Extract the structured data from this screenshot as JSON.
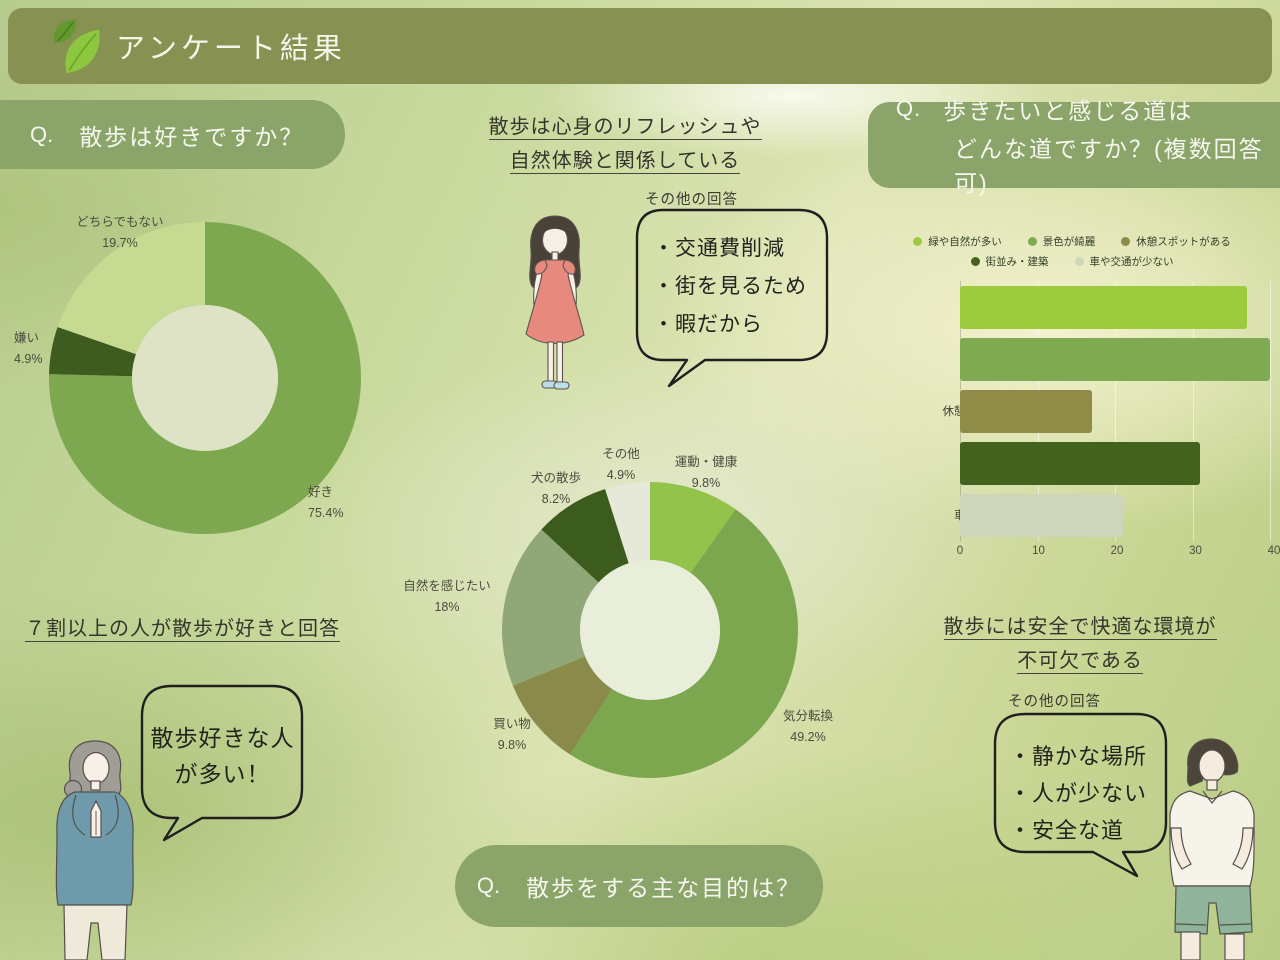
{
  "header": {
    "title": "アンケート結果"
  },
  "icons": {
    "header_logo": "leaf-icon"
  },
  "colors": {
    "header_bar": "#869152",
    "question_badge": "#8ba469",
    "bubble_outline": "#1f1f1f",
    "text_dark": "#3b3b33"
  },
  "questions": {
    "q1": {
      "prefix": "Q.",
      "text": "散歩は好きですか？"
    },
    "q2": {
      "prefix": "Q.",
      "line1": "歩きたいと感じる道は",
      "line2": "どんな道ですか？(複数回答可)"
    },
    "q3": {
      "prefix": "Q.",
      "text": "散歩をする主な目的は？"
    }
  },
  "statements": {
    "s1_line1": "散歩は心身のリフレッシュや",
    "s1_line2": "自然体験と関係している",
    "s2": "７割以上の人が散歩が好きと回答",
    "s3_line1": "散歩には安全で快適な環境が",
    "s3_line2": "不可欠である"
  },
  "bubbles": {
    "other1": {
      "title": "その他の回答",
      "items": [
        "・交通費削減",
        "・街を見るため",
        "・暇だから"
      ]
    },
    "happy": {
      "line1": "散歩好きな人",
      "line2": "が多い！"
    },
    "other2": {
      "title": "その他の回答",
      "items": [
        "・静かな場所",
        "・人が少ない",
        "・安全な道"
      ]
    }
  },
  "chart_data": [
    {
      "type": "pie",
      "donut": true,
      "title": "散歩は好きですか？",
      "labels": [
        "好き",
        "嫌い",
        "どちらでもない"
      ],
      "values": [
        75.4,
        4.9,
        19.7
      ],
      "pct_labels": [
        "75.4%",
        "4.9%",
        "19.7%"
      ],
      "colors": [
        "#7ea84f",
        "#3f5c20",
        "#c6da92"
      ],
      "hole_color": "#dfe3c5",
      "start_angle_deg": 0,
      "direction": "clockwise"
    },
    {
      "type": "bar",
      "orientation": "horizontal",
      "title": "歩きたいと感じる道はどんな道ですか？(複数回答可)",
      "categories": [
        "緑や自然が多い",
        "景色が綺麗",
        "休憩スポットがある",
        "街並み・建築",
        "車や交通が少ない"
      ],
      "values": [
        37,
        40,
        17,
        31,
        21
      ],
      "colors": [
        "#9ccb3e",
        "#80aa52",
        "#8f8c48",
        "#43621d",
        "#ced5bd"
      ],
      "xlim": [
        0,
        40
      ],
      "ticks": [
        0,
        10,
        20,
        30,
        40
      ],
      "grid": true,
      "legend_rows": [
        [
          0,
          1,
          2
        ],
        [
          3,
          4
        ]
      ],
      "legend_position": "top"
    },
    {
      "type": "pie",
      "donut": true,
      "title": "散歩をする主な目的は？",
      "labels": [
        "運動・健康",
        "気分転換",
        "買い物",
        "自然を感じたい",
        "犬の散歩",
        "その他"
      ],
      "values": [
        9.8,
        49.2,
        9.8,
        18,
        8.2,
        4.9
      ],
      "pct_labels": [
        "9.8%",
        "49.2%",
        "9.8%",
        "18%",
        "8.2%",
        "4.9%"
      ],
      "colors": [
        "#93c34a",
        "#7ca74f",
        "#8a8b4b",
        "#90a878",
        "#3c5c1e",
        "#e6e9d9"
      ],
      "hole_color": "#e9eedb",
      "start_angle_deg": 0,
      "direction": "clockwise"
    }
  ]
}
